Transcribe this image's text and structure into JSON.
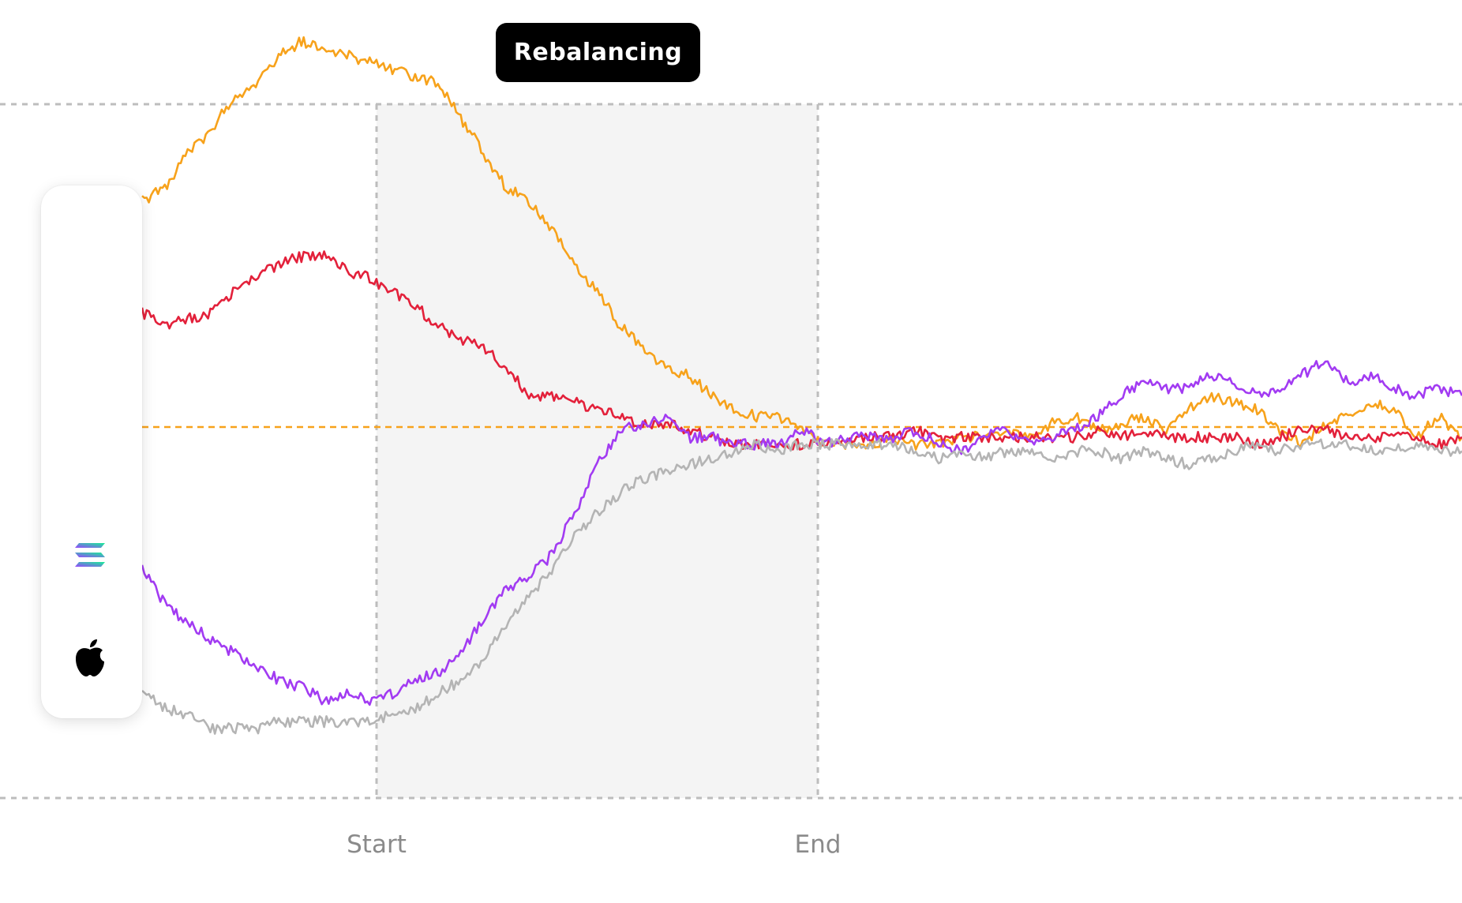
{
  "header": {
    "title": "Rebalancing"
  },
  "colors": {
    "btc": "#F7A21B",
    "tsla": "#E3213B",
    "sol": "#A23BF2",
    "aapl": "#B4B4B4",
    "band": "#F4F4F4",
    "grid": "#BDBDBD",
    "target": "#F7A21B"
  },
  "legend": {
    "items": [
      {
        "icon": "bitcoin-icon",
        "color": "#F7931A"
      },
      {
        "icon": "tesla-icon",
        "color": "#E82240"
      },
      {
        "icon": "solana-icon",
        "color": "#000000"
      },
      {
        "icon": "apple-icon",
        "color": "#B0B4B8"
      }
    ]
  },
  "chart_data": {
    "type": "line",
    "title": "Rebalancing",
    "xlabel": "",
    "ylabel": "",
    "x_tick_labels": [
      "Start",
      "End"
    ],
    "rebalancing_window": {
      "start": "Start",
      "end": "End"
    },
    "grid": "dashed horizontal lines at top and bottom, dashed vertical lines at Start and End",
    "target_line": {
      "color": "#F7A21B",
      "style": "dashed"
    },
    "series": [
      {
        "color": "#F7A21B",
        "values": [
          0.86,
          0.88,
          0.93,
          0.96,
          1.01,
          1.03,
          1.07,
          1.09,
          1.08,
          1.07,
          1.06,
          1.05,
          1.04,
          1.03,
          0.98,
          0.93,
          0.88,
          0.86,
          0.82,
          0.77,
          0.73,
          0.68,
          0.65,
          0.62,
          0.61,
          0.58,
          0.56,
          0.55,
          0.55,
          0.53,
          0.51,
          0.51,
          0.51,
          0.52,
          0.51,
          0.51,
          0.52,
          0.52,
          0.53,
          0.52,
          0.54,
          0.55,
          0.53,
          0.54,
          0.55,
          0.53,
          0.56,
          0.58,
          0.57,
          0.56,
          0.53,
          0.51,
          0.54,
          0.55,
          0.57,
          0.56,
          0.52,
          0.55,
          0.52
        ]
      },
      {
        "color": "#E3213B",
        "values": [
          0.7,
          0.68,
          0.69,
          0.7,
          0.73,
          0.75,
          0.77,
          0.78,
          0.78,
          0.76,
          0.75,
          0.73,
          0.71,
          0.68,
          0.66,
          0.65,
          0.62,
          0.58,
          0.58,
          0.57,
          0.56,
          0.55,
          0.54,
          0.54,
          0.53,
          0.52,
          0.51,
          0.51,
          0.51,
          0.51,
          0.51,
          0.52,
          0.52,
          0.52,
          0.53,
          0.52,
          0.52,
          0.52,
          0.52,
          0.52,
          0.52,
          0.52,
          0.53,
          0.52,
          0.53,
          0.52,
          0.52,
          0.52,
          0.52,
          0.51,
          0.52,
          0.53,
          0.53,
          0.52,
          0.52,
          0.52,
          0.52,
          0.51,
          0.52
        ]
      },
      {
        "color": "#A23BF2",
        "values": [
          0.33,
          0.28,
          0.25,
          0.23,
          0.21,
          0.19,
          0.17,
          0.16,
          0.14,
          0.15,
          0.14,
          0.15,
          0.17,
          0.18,
          0.21,
          0.26,
          0.3,
          0.32,
          0.35,
          0.41,
          0.48,
          0.53,
          0.54,
          0.55,
          0.52,
          0.52,
          0.51,
          0.51,
          0.51,
          0.53,
          0.51,
          0.52,
          0.52,
          0.52,
          0.53,
          0.51,
          0.5,
          0.52,
          0.53,
          0.51,
          0.52,
          0.53,
          0.55,
          0.58,
          0.6,
          0.59,
          0.59,
          0.61,
          0.6,
          0.58,
          0.59,
          0.61,
          0.63,
          0.6,
          0.61,
          0.59,
          0.58,
          0.59,
          0.58
        ]
      },
      {
        "color": "#B4B4B4",
        "values": [
          0.15,
          0.13,
          0.12,
          0.1,
          0.1,
          0.1,
          0.11,
          0.11,
          0.11,
          0.11,
          0.11,
          0.12,
          0.13,
          0.15,
          0.17,
          0.2,
          0.25,
          0.29,
          0.33,
          0.38,
          0.41,
          0.44,
          0.46,
          0.47,
          0.48,
          0.49,
          0.5,
          0.51,
          0.5,
          0.51,
          0.51,
          0.51,
          0.51,
          0.51,
          0.5,
          0.49,
          0.5,
          0.49,
          0.5,
          0.5,
          0.49,
          0.5,
          0.5,
          0.49,
          0.5,
          0.49,
          0.48,
          0.49,
          0.5,
          0.51,
          0.5,
          0.51,
          0.51,
          0.51,
          0.5,
          0.5,
          0.51,
          0.5,
          0.5
        ]
      }
    ]
  }
}
